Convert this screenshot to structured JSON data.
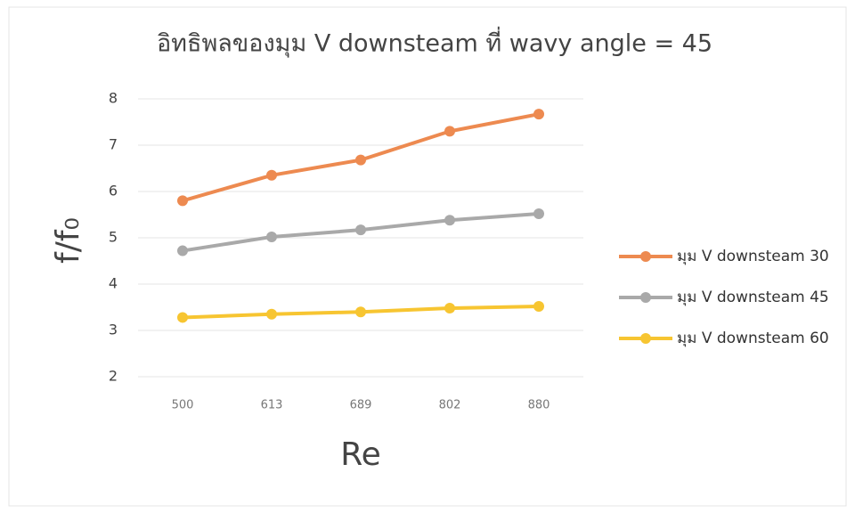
{
  "chart_data": {
    "type": "line",
    "title": "อิทธิพลของมุม V downsteam ที่ wavy angle = 45",
    "xlabel": "Re",
    "ylabel": "f/f₀",
    "categories": [
      "500",
      "613",
      "689",
      "802",
      "880"
    ],
    "series": [
      {
        "name": "มุม V downsteam 30",
        "color": "#ed8a50",
        "values": [
          5.8,
          6.35,
          6.68,
          7.3,
          7.67
        ]
      },
      {
        "name": "มุม V downsteam 45",
        "color": "#a9a9a9",
        "values": [
          4.72,
          5.02,
          5.17,
          5.38,
          5.52
        ]
      },
      {
        "name": "มุม V downsteam 60",
        "color": "#f7c531",
        "values": [
          3.28,
          3.35,
          3.4,
          3.48,
          3.52
        ]
      }
    ],
    "ylim": [
      2,
      8
    ],
    "yticks": [
      2,
      3,
      4,
      5,
      6,
      7,
      8
    ],
    "grid": true,
    "legend": "right"
  }
}
